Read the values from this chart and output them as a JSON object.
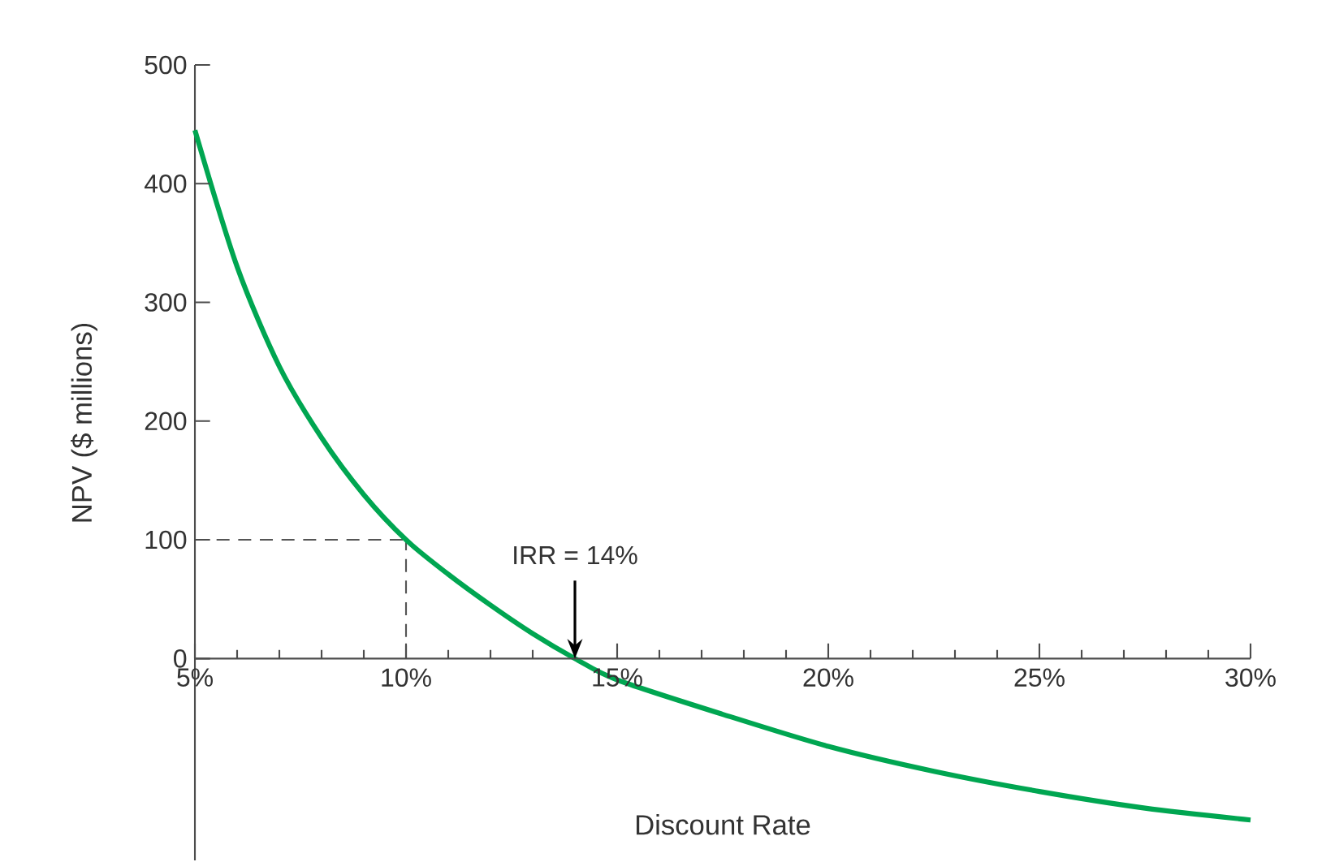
{
  "chart_data": {
    "type": "line",
    "xlabel": "Discount Rate",
    "ylabel": "NPV ($ millions)",
    "x": [
      5,
      6,
      7,
      8,
      9,
      10,
      11,
      12,
      13,
      14,
      15,
      17.5,
      20,
      22.5,
      25,
      27.5,
      30
    ],
    "series": [
      {
        "color": "#00a651",
        "values": [
          445,
          330,
          246,
          186,
          138,
          100,
          71,
          45,
          21,
          0,
          -18,
          -47,
          -74,
          -95,
          -112,
          -126,
          -136
        ]
      }
    ],
    "xlim": [
      5,
      30
    ],
    "ylim": [
      -170,
      500
    ],
    "xticks": [
      {
        "value": 5,
        "label": "5%"
      },
      {
        "value": 10,
        "label": "10%"
      },
      {
        "value": 15,
        "label": "15%"
      },
      {
        "value": 20,
        "label": "20%"
      },
      {
        "value": 25,
        "label": "25%"
      },
      {
        "value": 30,
        "label": "30%"
      }
    ],
    "yticks": [
      0,
      100,
      200,
      300,
      400,
      500
    ],
    "ref_lines": [
      {
        "axis": "y",
        "value": 100,
        "color": "#555555",
        "line_style": "dashed"
      },
      {
        "axis": "x",
        "value": 10,
        "color": "#555555",
        "line_style": "dashed"
      }
    ],
    "annotations": [
      {
        "text": "IRR = 14%",
        "x": 14,
        "y": 0
      }
    ],
    "marker": "none",
    "line_style": "solid",
    "grid": false
  }
}
